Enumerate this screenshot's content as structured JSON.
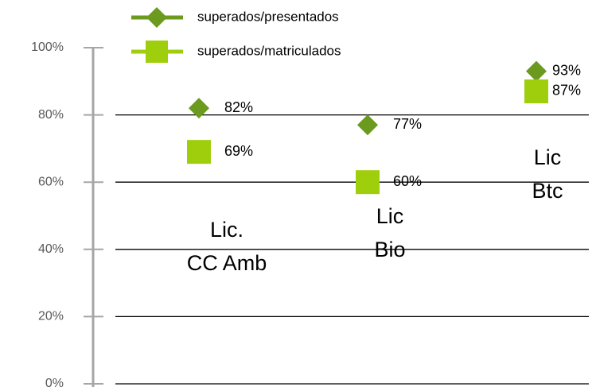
{
  "chart_data": {
    "type": "line",
    "lines": false,
    "categories": [
      "Lic.\nCC Amb",
      "Lic\nBio",
      "Lic\nBtc"
    ],
    "series": [
      {
        "name": "superados/presentados",
        "color": "#6b9a1e",
        "marker": "diamond",
        "values": [
          82,
          77,
          93
        ],
        "value_labels": [
          "82%",
          "77%",
          "93%"
        ]
      },
      {
        "name": "superados/matriculados",
        "color": "#9fcf0c",
        "marker": "square",
        "values": [
          69,
          60,
          87
        ],
        "value_labels": [
          "69%",
          "60%",
          "87%"
        ]
      }
    ],
    "ylim": [
      0,
      100
    ],
    "yticks": [
      {
        "value": 0,
        "label": "0%"
      },
      {
        "value": 20,
        "label": "20%"
      },
      {
        "value": 40,
        "label": "40%"
      },
      {
        "value": 60,
        "label": "60%"
      },
      {
        "value": 80,
        "label": "80%"
      },
      {
        "value": 100,
        "label": "100%"
      }
    ],
    "grid": true,
    "legend": "top"
  }
}
